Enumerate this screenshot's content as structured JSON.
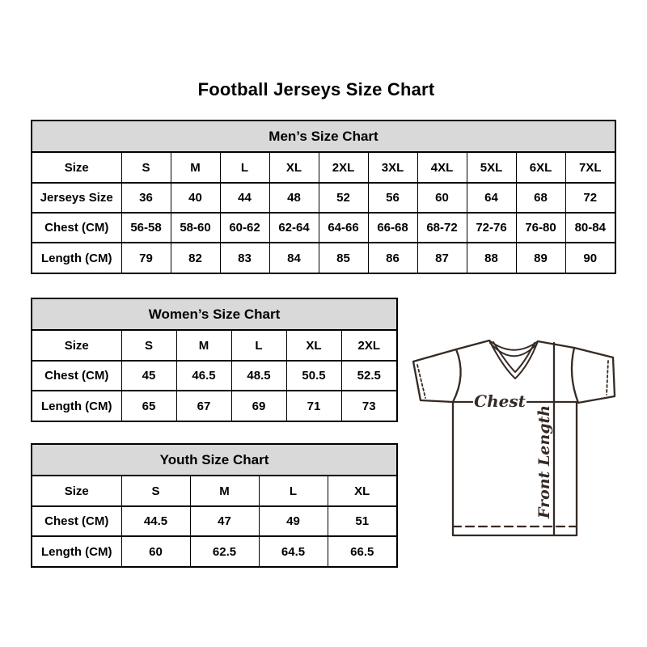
{
  "page": {
    "title": "Football Jerseys Size Chart"
  },
  "chart_data": [
    {
      "type": "table",
      "title": "Men’s Size Chart",
      "rows": [
        [
          "Size",
          "S",
          "M",
          "L",
          "XL",
          "2XL",
          "3XL",
          "4XL",
          "5XL",
          "6XL",
          "7XL"
        ],
        [
          "Jerseys Size",
          "36",
          "40",
          "44",
          "48",
          "52",
          "56",
          "60",
          "64",
          "68",
          "72"
        ],
        [
          "Chest (CM)",
          "56-58",
          "58-60",
          "60-62",
          "62-64",
          "64-66",
          "66-68",
          "68-72",
          "72-76",
          "76-80",
          "80-84"
        ],
        [
          "Length (CM)",
          "79",
          "82",
          "83",
          "84",
          "85",
          "86",
          "87",
          "88",
          "89",
          "90"
        ]
      ]
    },
    {
      "type": "table",
      "title": "Women’s Size Chart",
      "rows": [
        [
          "Size",
          "S",
          "M",
          "L",
          "XL",
          "2XL"
        ],
        [
          "Chest (CM)",
          "45",
          "46.5",
          "48.5",
          "50.5",
          "52.5"
        ],
        [
          "Length (CM)",
          "65",
          "67",
          "69",
          "71",
          "73"
        ]
      ]
    },
    {
      "type": "table",
      "title": "Youth Size Chart",
      "rows": [
        [
          "Size",
          "S",
          "M",
          "L",
          "XL"
        ],
        [
          "Chest (CM)",
          "44.5",
          "47",
          "49",
          "51"
        ],
        [
          "Length (CM)",
          "60",
          "62.5",
          "64.5",
          "66.5"
        ]
      ]
    }
  ],
  "diagram": {
    "chest_label": "Chest",
    "front_length_label": "Front Length"
  },
  "colors": {
    "section_header_bg": "#d9d9d9",
    "table_border": "#000000",
    "jersey_line": "#352a24",
    "text": "#000000"
  }
}
